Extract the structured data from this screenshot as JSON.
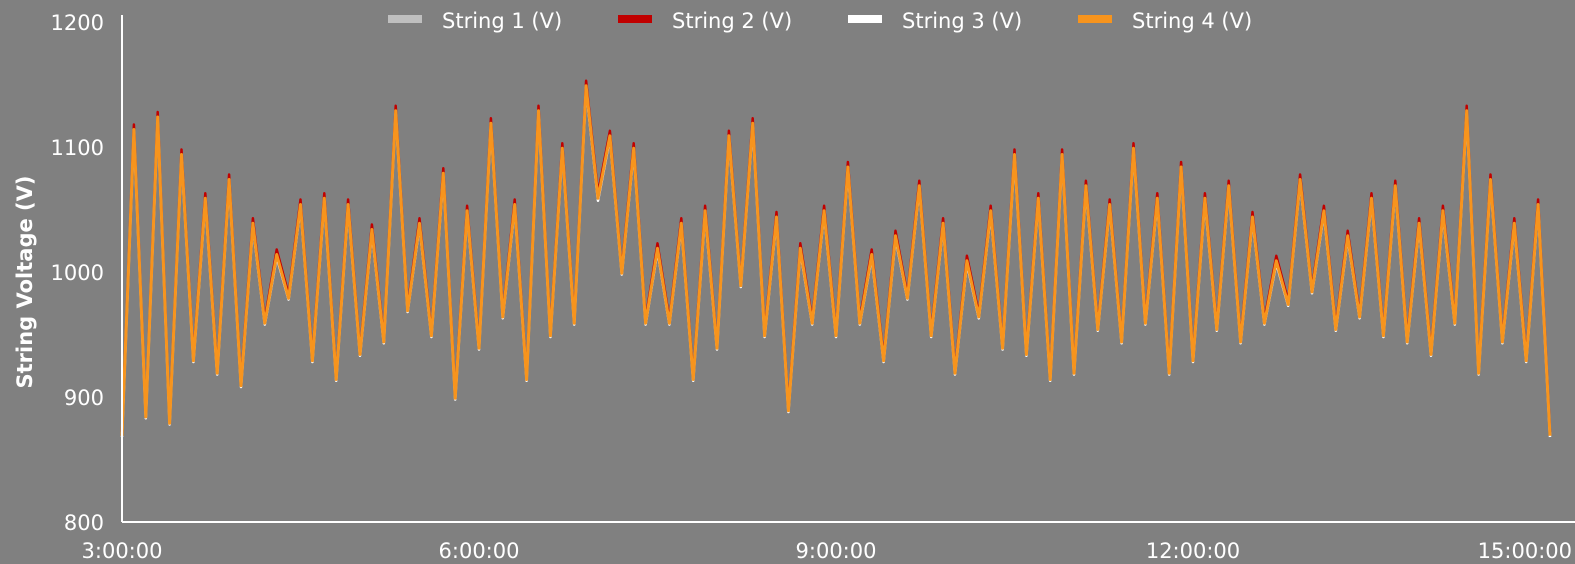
{
  "chart_data": {
    "type": "line",
    "title": "",
    "xlabel": "",
    "ylabel": "String Voltage (V)",
    "ylim": [
      800,
      1200
    ],
    "xlim": [
      "3:00:00",
      "15:00:00"
    ],
    "y_ticks": [
      "800",
      "900",
      "1000",
      "1100",
      "1200"
    ],
    "x_ticks": [
      "3:00:00",
      "6:00:00",
      "9:00:00",
      "12:00:00",
      "15:00:00"
    ],
    "grid": false,
    "legend_position": "top",
    "background": "#808080",
    "x_hours": [
      3.0,
      3.1,
      3.2,
      3.3,
      3.4,
      3.5,
      3.6,
      3.7,
      3.8,
      3.9,
      4.0,
      4.1,
      4.2,
      4.3,
      4.4,
      4.5,
      4.6,
      4.7,
      4.8,
      4.9,
      5.0,
      5.1,
      5.2,
      5.3,
      5.4,
      5.5,
      5.6,
      5.7,
      5.8,
      5.9,
      6.0,
      6.1,
      6.2,
      6.3,
      6.4,
      6.5,
      6.6,
      6.7,
      6.8,
      6.9,
      7.0,
      7.1,
      7.2,
      7.3,
      7.4,
      7.5,
      7.6,
      7.7,
      7.8,
      7.9,
      8.0,
      8.1,
      8.2,
      8.3,
      8.4,
      8.5,
      8.6,
      8.7,
      8.8,
      8.9,
      9.0,
      9.1,
      9.2,
      9.3,
      9.4,
      9.5,
      9.6,
      9.7,
      9.8,
      9.9,
      10.0,
      10.1,
      10.2,
      10.3,
      10.4,
      10.5,
      10.6,
      10.7,
      10.8,
      10.9,
      11.0,
      11.1,
      11.2,
      11.3,
      11.4,
      11.5,
      11.6,
      11.7,
      11.8,
      11.9,
      12.0,
      12.1,
      12.2,
      12.3,
      12.4,
      12.5,
      12.6,
      12.7,
      12.8,
      12.9,
      13.0,
      13.1,
      13.2,
      13.3,
      13.4,
      13.5,
      13.6,
      13.7,
      13.8,
      13.9,
      14.0,
      14.1,
      14.2,
      14.3,
      14.4,
      14.5,
      14.6,
      14.7,
      14.8,
      14.9,
      15.0
    ],
    "series": [
      {
        "name": "String 1 (V)",
        "color": "#bfbfbf",
        "values": [
          870,
          1115,
          885,
          1125,
          880,
          1095,
          930,
          1060,
          920,
          1075,
          910,
          1040,
          960,
          1015,
          980,
          1055,
          930,
          1060,
          915,
          1055,
          935,
          1035,
          945,
          1130,
          970,
          1040,
          950,
          1080,
          900,
          1050,
          940,
          1120,
          965,
          1055,
          915,
          1130,
          950,
          1100,
          960,
          1150,
          1060,
          1110,
          1000,
          1100,
          960,
          1020,
          960,
          1040,
          915,
          1050,
          940,
          1110,
          990,
          1120,
          950,
          1045,
          890,
          1020,
          960,
          1050,
          950,
          1085,
          960,
          1015,
          930,
          1030,
          980,
          1070,
          950,
          1040,
          920,
          1010,
          965,
          1050,
          940,
          1095,
          935,
          1060,
          915,
          1095,
          920,
          1070,
          955,
          1055,
          945,
          1100,
          960,
          1060,
          920,
          1085,
          930,
          1060,
          955,
          1070,
          945,
          1045,
          960,
          1010,
          975,
          1075,
          985,
          1050,
          955,
          1030,
          965,
          1060,
          950,
          1070,
          945,
          1040,
          935,
          1050,
          960,
          1130,
          920,
          1075,
          945,
          1040,
          930,
          1055,
          870
        ]
      },
      {
        "name": "String 2 (V)",
        "color": "#c00000",
        "values": [
          872,
          1118,
          887,
          1128,
          882,
          1098,
          932,
          1063,
          922,
          1078,
          912,
          1043,
          962,
          1018,
          982,
          1058,
          932,
          1063,
          917,
          1058,
          937,
          1038,
          947,
          1133,
          972,
          1043,
          952,
          1083,
          902,
          1053,
          942,
          1123,
          967,
          1058,
          917,
          1133,
          952,
          1103,
          962,
          1153,
          1063,
          1113,
          1002,
          1103,
          962,
          1023,
          962,
          1043,
          917,
          1053,
          942,
          1113,
          992,
          1123,
          952,
          1048,
          892,
          1023,
          962,
          1053,
          952,
          1088,
          962,
          1018,
          932,
          1033,
          982,
          1073,
          952,
          1043,
          922,
          1013,
          967,
          1053,
          942,
          1098,
          937,
          1063,
          917,
          1098,
          922,
          1073,
          957,
          1058,
          947,
          1103,
          962,
          1063,
          922,
          1088,
          932,
          1063,
          957,
          1073,
          947,
          1048,
          962,
          1013,
          977,
          1078,
          987,
          1053,
          957,
          1033,
          967,
          1063,
          952,
          1073,
          947,
          1043,
          937,
          1053,
          962,
          1133,
          922,
          1078,
          947,
          1043,
          932,
          1058,
          872
        ]
      },
      {
        "name": "String 3 (V)",
        "color": "#ffffff",
        "values": [
          868,
          1112,
          883,
          1122,
          878,
          1092,
          928,
          1057,
          918,
          1072,
          908,
          1037,
          958,
          1012,
          978,
          1052,
          928,
          1057,
          913,
          1052,
          933,
          1032,
          943,
          1127,
          968,
          1037,
          948,
          1077,
          898,
          1047,
          938,
          1117,
          963,
          1052,
          913,
          1127,
          948,
          1097,
          958,
          1147,
          1057,
          1107,
          998,
          1097,
          958,
          1017,
          958,
          1037,
          913,
          1047,
          938,
          1107,
          988,
          1117,
          948,
          1042,
          888,
          1017,
          958,
          1047,
          948,
          1082,
          958,
          1012,
          928,
          1027,
          978,
          1067,
          948,
          1037,
          918,
          1007,
          963,
          1047,
          938,
          1092,
          933,
          1057,
          913,
          1092,
          918,
          1067,
          953,
          1052,
          943,
          1097,
          958,
          1057,
          918,
          1082,
          928,
          1057,
          953,
          1067,
          943,
          1042,
          958,
          1007,
          973,
          1072,
          983,
          1047,
          953,
          1027,
          963,
          1057,
          948,
          1067,
          943,
          1037,
          933,
          1047,
          958,
          1127,
          918,
          1072,
          943,
          1037,
          928,
          1052,
          868
        ]
      },
      {
        "name": "String 4 (V)",
        "color": "#f7941d",
        "values": [
          869,
          1114,
          884,
          1124,
          879,
          1094,
          929,
          1059,
          919,
          1074,
          909,
          1039,
          959,
          1014,
          979,
          1054,
          929,
          1059,
          914,
          1054,
          934,
          1034,
          944,
          1129,
          969,
          1039,
          949,
          1079,
          899,
          1049,
          939,
          1119,
          964,
          1054,
          914,
          1129,
          949,
          1099,
          959,
          1149,
          1059,
          1109,
          999,
          1099,
          959,
          1019,
          959,
          1039,
          914,
          1049,
          939,
          1109,
          989,
          1119,
          949,
          1044,
          889,
          1019,
          959,
          1049,
          949,
          1084,
          959,
          1014,
          929,
          1029,
          979,
          1069,
          949,
          1039,
          919,
          1009,
          964,
          1049,
          939,
          1094,
          934,
          1059,
          914,
          1094,
          919,
          1069,
          954,
          1054,
          944,
          1099,
          959,
          1059,
          919,
          1084,
          929,
          1059,
          954,
          1069,
          944,
          1044,
          959,
          1009,
          974,
          1074,
          984,
          1049,
          954,
          1029,
          964,
          1059,
          949,
          1069,
          944,
          1039,
          934,
          1049,
          959,
          1129,
          919,
          1074,
          944,
          1039,
          929,
          1054,
          869
        ]
      }
    ]
  }
}
